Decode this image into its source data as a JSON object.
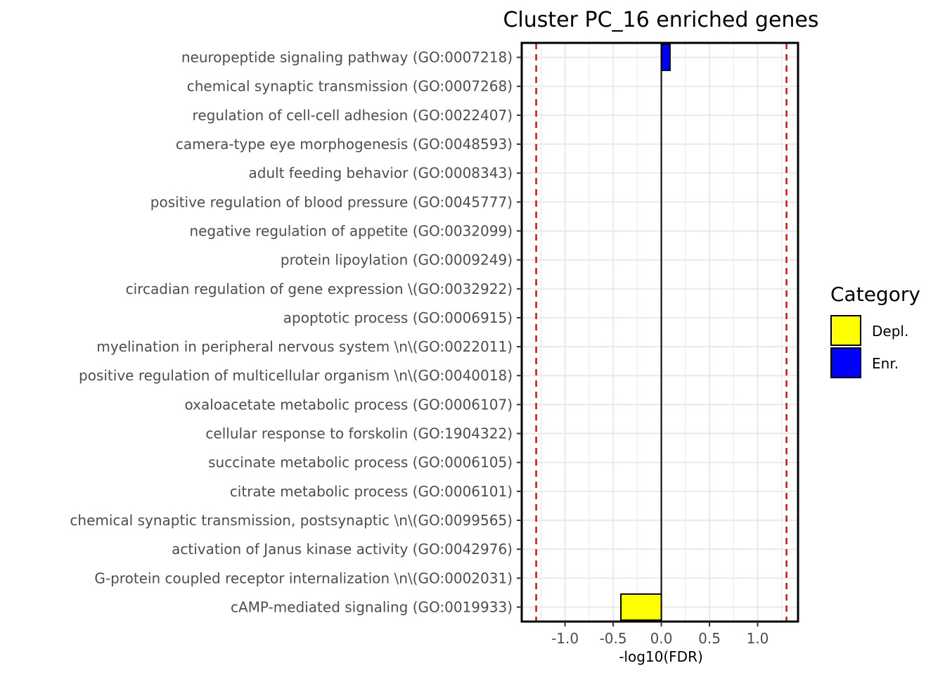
{
  "chart_data": {
    "type": "bar",
    "orientation": "horizontal",
    "title": "Cluster PC_16 enriched genes",
    "xlabel": "-log10(FDR)",
    "ylabel": "",
    "xlim": [
      -1.45,
      1.42
    ],
    "xticks": [
      -1.0,
      -0.5,
      0.0,
      0.5,
      1.0
    ],
    "xtick_labels": [
      "-1.0",
      "-0.5",
      "0.0",
      "0.5",
      "1.0"
    ],
    "grid": true,
    "threshold_lines": [
      -1.3,
      1.3
    ],
    "threshold_color": "#ff0000",
    "categories": [
      "neuropeptide signaling pathway (GO:0007218)",
      "chemical synaptic transmission (GO:0007268)",
      "regulation of cell-cell adhesion (GO:0022407)",
      "camera-type eye morphogenesis (GO:0048593)",
      "adult feeding behavior (GO:0008343)",
      "positive regulation of blood pressure (GO:0045777)",
      "negative regulation of appetite (GO:0032099)",
      "protein lipoylation (GO:0009249)",
      "circadian regulation of gene expression  \\(GO:0032922)",
      "apoptotic process (GO:0006915)",
      "myelination in peripheral nervous system  \\n\\(GO:0022011)",
      "positive regulation of multicellular organism \\n\\(GO:0040018)",
      "oxaloacetate metabolic process (GO:0006107)",
      "cellular response to forskolin (GO:1904322)",
      "succinate metabolic process (GO:0006105)",
      "citrate metabolic process (GO:0006101)",
      "chemical synaptic transmission, postsynaptic  \\n\\(GO:0099565)",
      "activation of Janus kinase activity (GO:0042976)",
      "G-protein coupled receptor internalization  \\n\\(GO:0002031)",
      "cAMP-mediated signaling (GO:0019933)"
    ],
    "values": [
      0.09,
      0,
      0,
      0,
      0,
      0,
      0,
      0,
      0,
      0,
      0,
      0,
      0,
      0,
      0,
      0,
      0,
      0,
      0,
      -0.42
    ],
    "bar_category": [
      "Enr.",
      "",
      "",
      "",
      "",
      "",
      "",
      "",
      "",
      "",
      "",
      "",
      "",
      "",
      "",
      "",
      "",
      "",
      "",
      "Depl."
    ],
    "legend": {
      "title": "Category",
      "position": "right",
      "items": [
        {
          "label": "Depl.",
          "color": "#ffff00"
        },
        {
          "label": "Enr.",
          "color": "#0000ff"
        }
      ]
    }
  }
}
